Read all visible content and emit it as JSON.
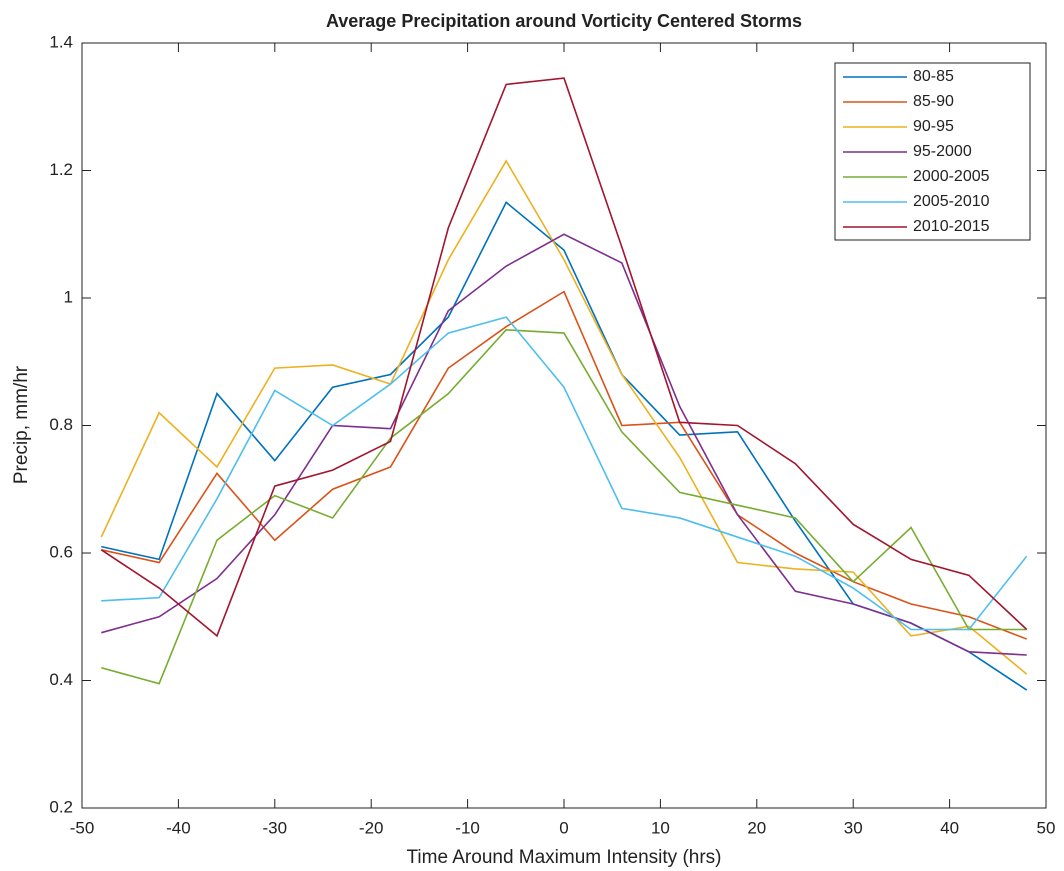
{
  "chart_data": {
    "type": "line",
    "title": "Average Precipitation around Vorticity Centered Storms",
    "x_label": "Time Around Maximum Intensity (hrs)",
    "y_label": "Precip, mm/hr",
    "x": [
      -48,
      -42,
      -36,
      -30,
      -24,
      -18,
      -12,
      -6,
      0,
      6,
      12,
      18,
      24,
      30,
      36,
      42,
      48
    ],
    "series": [
      {
        "name": "80-85",
        "color": "#0072BD",
        "values": [
          0.61,
          0.59,
          0.85,
          0.745,
          0.86,
          0.88,
          0.97,
          1.15,
          1.075,
          0.88,
          0.785,
          0.79,
          0.65,
          0.52,
          0.49,
          0.445,
          0.385
        ]
      },
      {
        "name": "85-90",
        "color": "#D95319",
        "values": [
          0.605,
          0.585,
          0.725,
          0.62,
          0.7,
          0.735,
          0.89,
          0.955,
          1.01,
          0.8,
          0.805,
          0.66,
          0.6,
          0.555,
          0.52,
          0.5,
          0.465
        ]
      },
      {
        "name": "90-95",
        "color": "#EDB120",
        "values": [
          0.625,
          0.82,
          0.735,
          0.89,
          0.895,
          0.865,
          1.06,
          1.215,
          1.06,
          0.88,
          0.75,
          0.585,
          0.575,
          0.57,
          0.47,
          0.485,
          0.41
        ]
      },
      {
        "name": "95-2000",
        "color": "#7E2F8E",
        "values": [
          0.475,
          0.5,
          0.56,
          0.66,
          0.8,
          0.795,
          0.98,
          1.05,
          1.1,
          1.055,
          0.83,
          0.66,
          0.54,
          0.52,
          0.49,
          0.445,
          0.44
        ]
      },
      {
        "name": "2000-2005",
        "color": "#77AC30",
        "values": [
          0.42,
          0.395,
          0.62,
          0.69,
          0.655,
          0.78,
          0.85,
          0.95,
          0.945,
          0.79,
          0.695,
          0.675,
          0.655,
          0.555,
          0.64,
          0.48,
          0.48
        ]
      },
      {
        "name": "2005-2010",
        "color": "#4DBEEE",
        "values": [
          0.525,
          0.53,
          0.685,
          0.855,
          0.8,
          0.865,
          0.945,
          0.97,
          0.86,
          0.67,
          0.655,
          0.625,
          0.595,
          0.545,
          0.48,
          0.48,
          0.595
        ]
      },
      {
        "name": "2010-2015",
        "color": "#A2142F",
        "values": [
          0.605,
          0.545,
          0.47,
          0.705,
          0.73,
          0.775,
          1.11,
          1.335,
          1.345,
          1.08,
          0.805,
          0.8,
          0.74,
          0.645,
          0.59,
          0.565,
          0.48
        ]
      }
    ],
    "xlim": [
      -50,
      50
    ],
    "xticks": [
      -50,
      -40,
      -30,
      -20,
      -10,
      0,
      10,
      20,
      30,
      40,
      50
    ],
    "ylim": [
      0.2,
      1.4
    ],
    "yticks": [
      0.2,
      0.4,
      0.6,
      0.8,
      1,
      1.2,
      1.4
    ],
    "grid": false,
    "legend_position": "northeast"
  }
}
